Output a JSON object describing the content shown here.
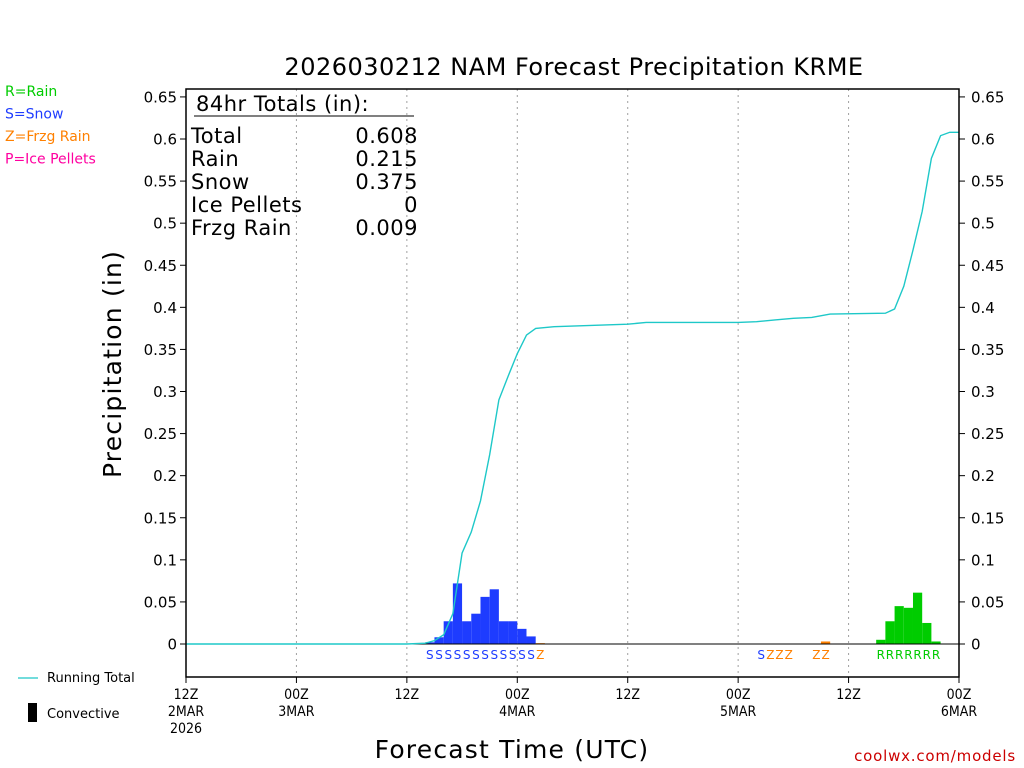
{
  "chart_data": {
    "type": "bar",
    "title": "2026030212 NAM Forecast Precipitation KRME",
    "xlabel": "Forecast Time (UTC)",
    "ylabel": "Precipitation (in)",
    "ylim": [
      0,
      0.65
    ],
    "xlim_hours": [
      0,
      84
    ],
    "y_ticks": [
      "0",
      "0.05",
      "0.1",
      "0.15",
      "0.2",
      "0.25",
      "0.3",
      "0.35",
      "0.4",
      "0.45",
      "0.5",
      "0.55",
      "0.6",
      "0.65"
    ],
    "x_ticks": [
      {
        "hour": 0,
        "line1": "12Z",
        "line2": "2MAR",
        "line3": "2026"
      },
      {
        "hour": 12,
        "line1": "00Z",
        "line2": "3MAR",
        "line3": ""
      },
      {
        "hour": 24,
        "line1": "12Z",
        "line2": "",
        "line3": ""
      },
      {
        "hour": 36,
        "line1": "00Z",
        "line2": "4MAR",
        "line3": ""
      },
      {
        "hour": 48,
        "line1": "12Z",
        "line2": "",
        "line3": ""
      },
      {
        "hour": 60,
        "line1": "00Z",
        "line2": "5MAR",
        "line3": ""
      },
      {
        "hour": 72,
        "line1": "12Z",
        "line2": "",
        "line3": ""
      },
      {
        "hour": 84,
        "line1": "00Z",
        "line2": "6MAR",
        "line3": ""
      }
    ],
    "grid": "vertical dotted",
    "colors": {
      "rain": "#00cc00",
      "snow": "#1e3cff",
      "frzg": "#ff8000",
      "ice": "#ff00a0",
      "running_total": "#1ec8c8",
      "convective": "#000000"
    },
    "precip_key": [
      {
        "text": "R=Rain",
        "color": "#00cc00"
      },
      {
        "text": "S=Snow",
        "color": "#1e3cff"
      },
      {
        "text": "Z=Frzg Rain",
        "color": "#ff8000"
      },
      {
        "text": "P=Ice Pellets",
        "color": "#ff00a0"
      }
    ],
    "totals": {
      "heading": "84hr Totals (in):",
      "rows": [
        {
          "label": "Total",
          "value": "0.608"
        },
        {
          "label": "Rain",
          "value": "0.215"
        },
        {
          "label": "Snow",
          "value": "0.375"
        },
        {
          "label": "Ice Pellets",
          "value": "0"
        },
        {
          "label": "Frzg Rain",
          "value": "0.009"
        }
      ]
    },
    "bars": [
      {
        "hour": 27,
        "value": 0.002,
        "type": "snow"
      },
      {
        "hour": 28,
        "value": 0.008,
        "type": "snow"
      },
      {
        "hour": 29,
        "value": 0.027,
        "type": "snow"
      },
      {
        "hour": 30,
        "value": 0.072,
        "type": "snow"
      },
      {
        "hour": 31,
        "value": 0.027,
        "type": "snow"
      },
      {
        "hour": 32,
        "value": 0.036,
        "type": "snow"
      },
      {
        "hour": 33,
        "value": 0.056,
        "type": "snow"
      },
      {
        "hour": 34,
        "value": 0.065,
        "type": "snow"
      },
      {
        "hour": 35,
        "value": 0.027,
        "type": "snow"
      },
      {
        "hour": 36,
        "value": 0.027,
        "type": "snow"
      },
      {
        "hour": 37,
        "value": 0.018,
        "type": "snow"
      },
      {
        "hour": 38,
        "value": 0.009,
        "type": "snow"
      },
      {
        "hour": 39,
        "value": 0.001,
        "type": "frzg"
      },
      {
        "hour": 70,
        "value": 0.003,
        "type": "frzg"
      },
      {
        "hour": 76,
        "value": 0.005,
        "type": "rain"
      },
      {
        "hour": 77,
        "value": 0.027,
        "type": "rain"
      },
      {
        "hour": 78,
        "value": 0.045,
        "type": "rain"
      },
      {
        "hour": 79,
        "value": 0.043,
        "type": "rain"
      },
      {
        "hour": 80,
        "value": 0.061,
        "type": "rain"
      },
      {
        "hour": 81,
        "value": 0.025,
        "type": "rain"
      },
      {
        "hour": 82,
        "value": 0.003,
        "type": "rain"
      }
    ],
    "running_total": {
      "hours": [
        0,
        24,
        26,
        27,
        28,
        29,
        30,
        31,
        32,
        33,
        34,
        35,
        36,
        37,
        38,
        39,
        40,
        48,
        50,
        60,
        62,
        64,
        66,
        68,
        70,
        76,
        77,
        78,
        79,
        80,
        81,
        82,
        83,
        84
      ],
      "values": [
        0,
        0,
        0.001,
        0.004,
        0.011,
        0.036,
        0.108,
        0.133,
        0.17,
        0.225,
        0.29,
        0.318,
        0.345,
        0.367,
        0.375,
        0.376,
        0.377,
        0.38,
        0.382,
        0.382,
        0.383,
        0.385,
        0.387,
        0.388,
        0.392,
        0.393,
        0.398,
        0.425,
        0.468,
        0.514,
        0.577,
        0.604,
        0.608,
        0.608
      ]
    },
    "ptype_markers": [
      {
        "start_hour": 27,
        "letters": "SSSSSSSSSSSSZ",
        "types": [
          "snow",
          "snow",
          "snow",
          "snow",
          "snow",
          "snow",
          "snow",
          "snow",
          "snow",
          "snow",
          "snow",
          "snow",
          "frzg"
        ]
      },
      {
        "start_hour": 63,
        "letters": "SZZZ",
        "types": [
          "snow",
          "frzg",
          "frzg",
          "frzg"
        ]
      },
      {
        "start_hour": 69,
        "letters": "ZZ",
        "types": [
          "frzg",
          "frzg"
        ]
      },
      {
        "start_hour": 76,
        "letters": "RRRRRRR",
        "types": [
          "rain",
          "rain",
          "rain",
          "rain",
          "rain",
          "rain",
          "rain"
        ]
      }
    ],
    "legend": [
      {
        "label": "Running Total"
      },
      {
        "label": "Convective"
      }
    ],
    "credit": "coolwx.com/models"
  }
}
